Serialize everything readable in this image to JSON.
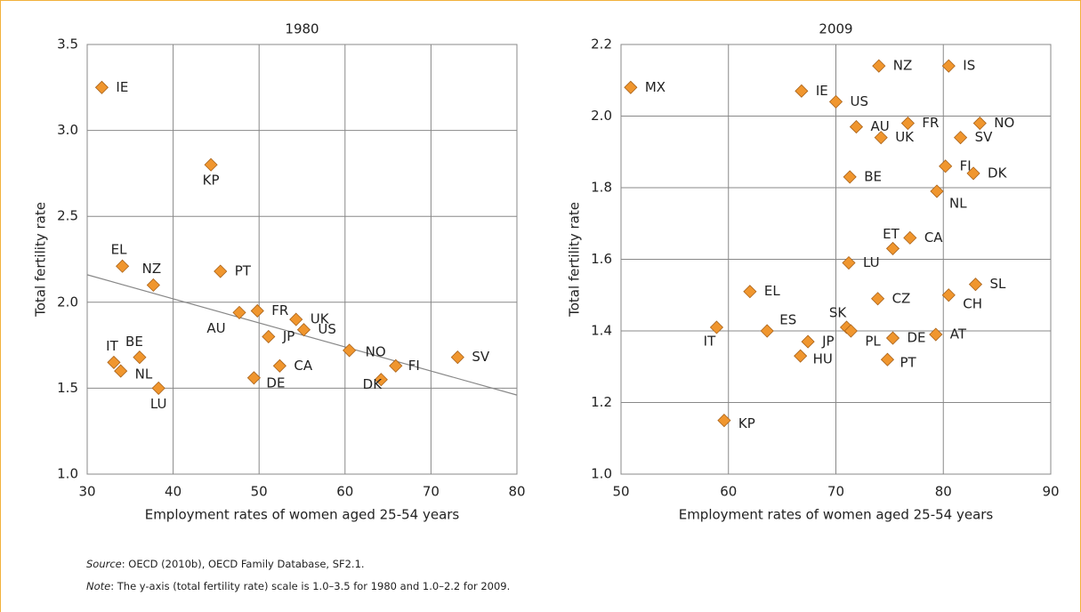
{
  "chart_data": [
    {
      "type": "scatter",
      "title": "1980",
      "xlabel": "Employment rates of women aged 25-54 years",
      "ylabel": "Total fertility rate",
      "labels": [
        "IE",
        "KP",
        "EL",
        "NZ",
        "PT",
        "AU",
        "FR",
        "UK",
        "US",
        "JP",
        "CA",
        "DE",
        "NO",
        "FI",
        "DK",
        "SV",
        "IT",
        "BE",
        "NL",
        "LU"
      ],
      "x": [
        31.7,
        44.4,
        34.1,
        37.7,
        45.5,
        47.7,
        49.8,
        54.3,
        55.2,
        51.1,
        52.4,
        49.4,
        60.5,
        65.9,
        64.2,
        73.1,
        33.1,
        36.1,
        33.9,
        38.3
      ],
      "values": [
        3.25,
        2.8,
        2.21,
        2.1,
        2.18,
        1.94,
        1.95,
        1.9,
        1.84,
        1.8,
        1.63,
        1.56,
        1.72,
        1.63,
        1.55,
        1.68,
        1.65,
        1.68,
        1.6,
        1.5
      ],
      "trendline": {
        "x": [
          30,
          80
        ],
        "values": [
          2.16,
          1.46
        ]
      },
      "color": "#f0962e",
      "grid": true,
      "xlim": [
        30,
        80
      ],
      "xticks": [
        30,
        40,
        50,
        60,
        70,
        80
      ],
      "ylim": [
        1.0,
        3.5
      ],
      "yticks": [
        {
          "value": 1.0,
          "label": "1.0"
        },
        1.5,
        {
          "value": 2.0,
          "label": "2.0"
        },
        2.5,
        {
          "value": 3.0,
          "label": "3.0"
        },
        3.5
      ]
    },
    {
      "type": "scatter",
      "title": "2009",
      "xlabel": "Employment rates of women aged 25-54 years",
      "ylabel": "Total fertility rate",
      "labels": [
        "MX",
        "IE",
        "US",
        "NZ",
        "IS",
        "AU",
        "FR",
        "UK",
        "NO",
        "SV",
        "BE",
        "FI",
        "DK",
        "NL",
        "ET",
        "CA",
        "LU",
        "EL",
        "CZ",
        "SL",
        "CH",
        "IT",
        "ES",
        "SK",
        "PL",
        "JP",
        "HU",
        "DE",
        "AT",
        "PT",
        "KP"
      ],
      "x": [
        50.9,
        66.8,
        70.0,
        74.0,
        80.5,
        71.9,
        76.7,
        74.2,
        83.4,
        81.6,
        71.3,
        80.2,
        82.8,
        79.4,
        75.3,
        76.9,
        71.2,
        62.0,
        73.9,
        83.0,
        80.5,
        58.9,
        63.6,
        71.0,
        71.4,
        67.4,
        66.7,
        75.3,
        79.3,
        74.8,
        59.6
      ],
      "values": [
        2.08,
        2.07,
        2.04,
        2.14,
        2.14,
        1.97,
        1.98,
        1.94,
        1.98,
        1.94,
        1.83,
        1.86,
        1.84,
        1.79,
        1.63,
        1.66,
        1.59,
        1.51,
        1.49,
        1.53,
        1.5,
        1.41,
        1.4,
        1.41,
        1.4,
        1.37,
        1.33,
        1.38,
        1.39,
        1.32,
        1.15
      ],
      "color": "#f0962e",
      "grid": true,
      "xlim": [
        50,
        90
      ],
      "xticks": [
        50,
        60,
        70,
        80,
        90
      ],
      "ylim": [
        1.0,
        2.2
      ],
      "yticks": [
        {
          "value": 1.0,
          "label": "1.0"
        },
        1.2,
        1.4,
        1.6,
        1.8,
        {
          "value": 2.0,
          "label": "2.0"
        },
        2.2
      ]
    }
  ],
  "footer": {
    "source_label": "Source",
    "source_text": ": OECD (2010b), OECD Family Database, SF2.1.",
    "note_label": "Note",
    "note_text": ": The y-axis (total fertility rate) scale is 1.0–3.5 for 1980 and 1.0–2.2 for 2009."
  }
}
